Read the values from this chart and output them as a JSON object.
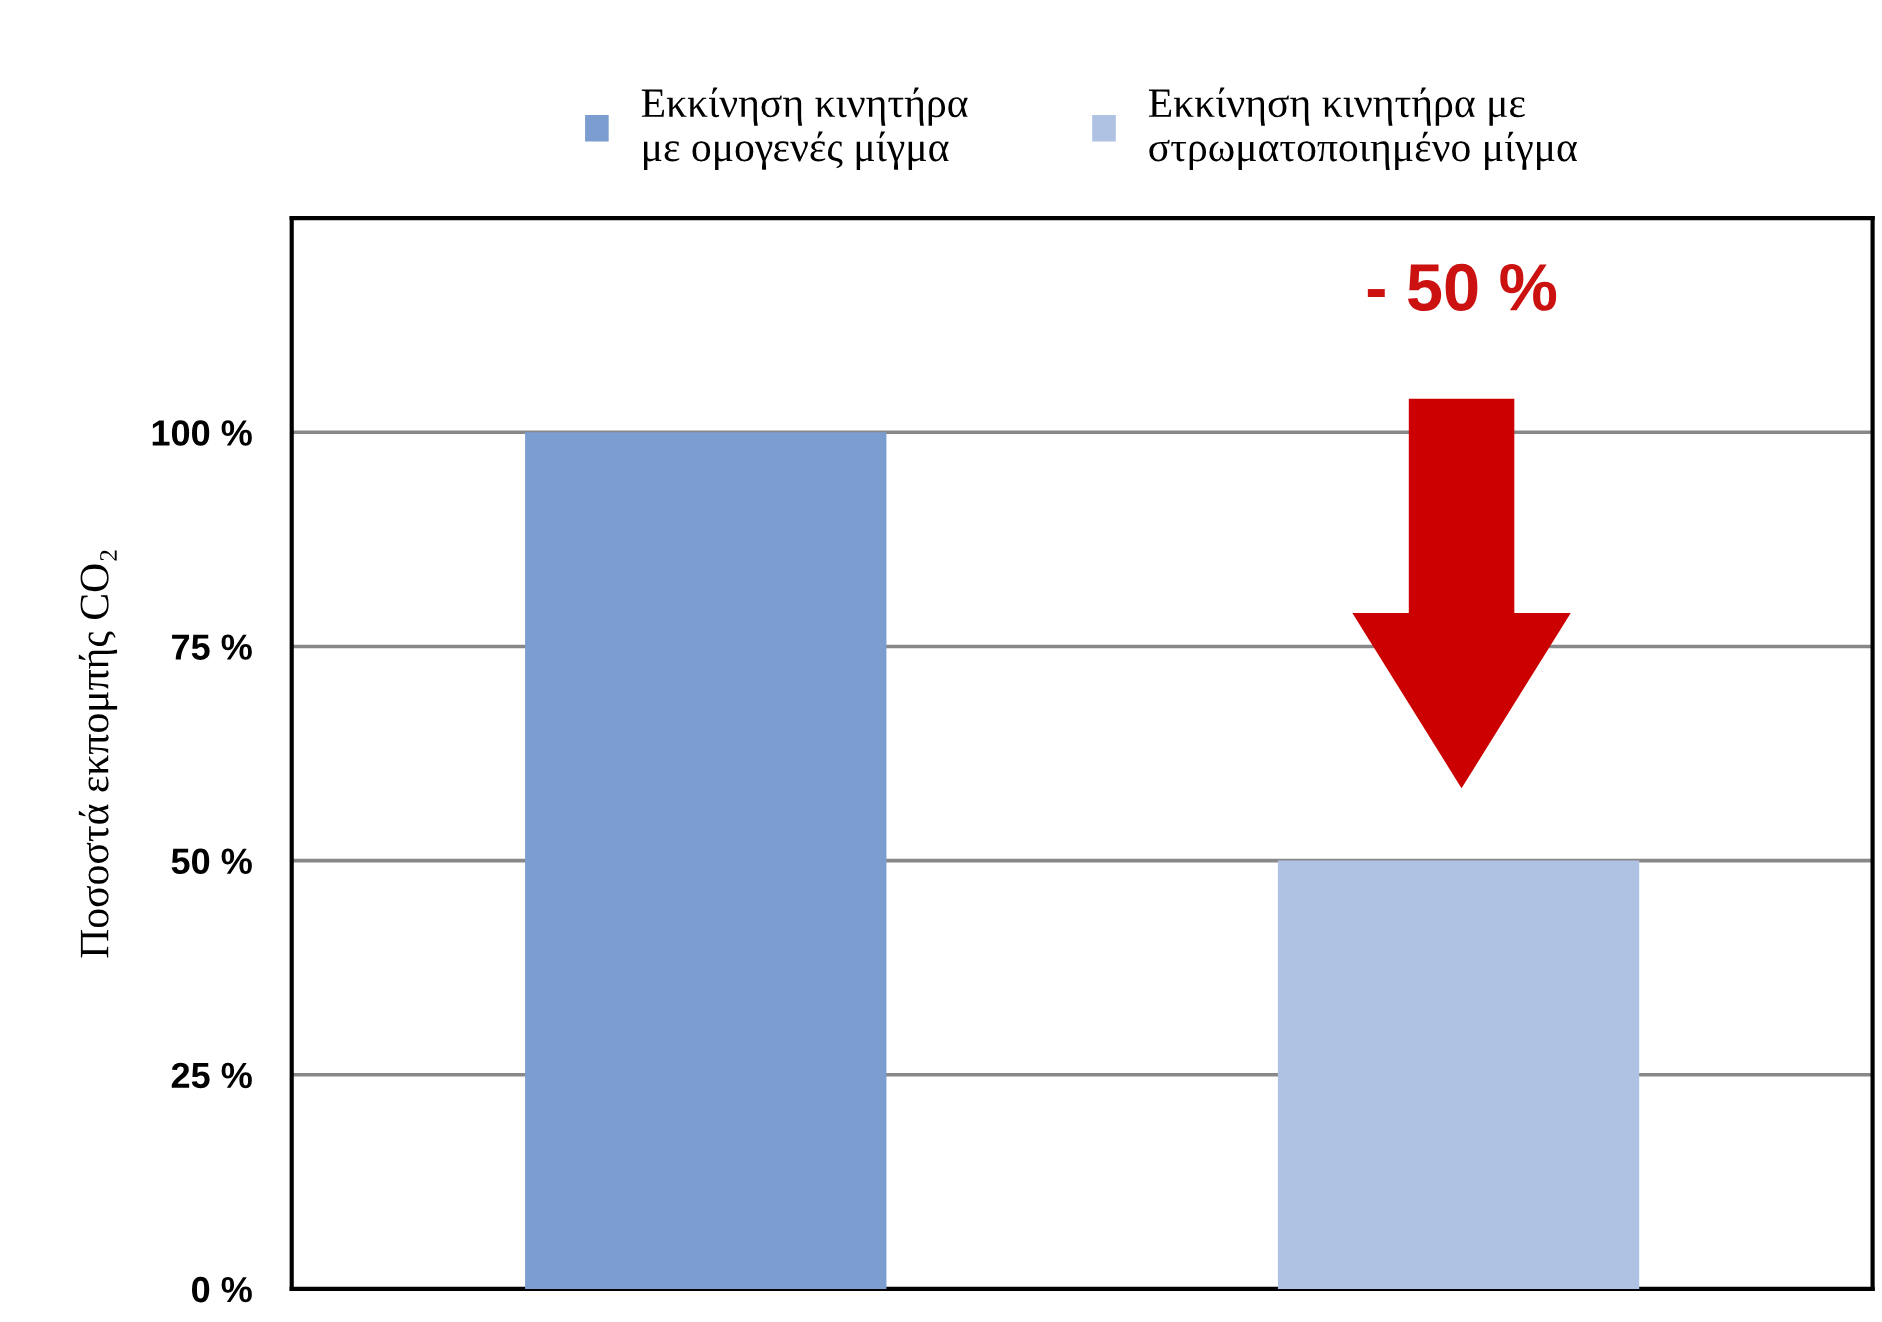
{
  "chart_data": {
    "type": "bar",
    "ylabel": "Ποσοστά εκπομπής CO₂",
    "categories": [
      null,
      null
    ],
    "series": [
      {
        "name": "Εκκίνηση κινητήρα\nμε ομογενές μίγμα",
        "color": "#7b9dd0",
        "values": [
          100,
          null
        ]
      },
      {
        "name": "Εκκίνηση κινητήρα με\nστρωματοποιημένο μίγμα",
        "color": "#b0c2e4",
        "values": [
          null,
          50
        ]
      }
    ],
    "ylim": [
      0,
      125
    ],
    "yticks": [
      {
        "value": 0,
        "label": "0 %"
      },
      {
        "value": 25,
        "label": "25 %"
      },
      {
        "value": 50,
        "label": "50 %"
      },
      {
        "value": 75,
        "label": "75 %"
      },
      {
        "value": 100,
        "label": "100 %"
      }
    ],
    "grid": "y",
    "legend": "top",
    "annotations": [
      "- 50 %"
    ]
  }
}
